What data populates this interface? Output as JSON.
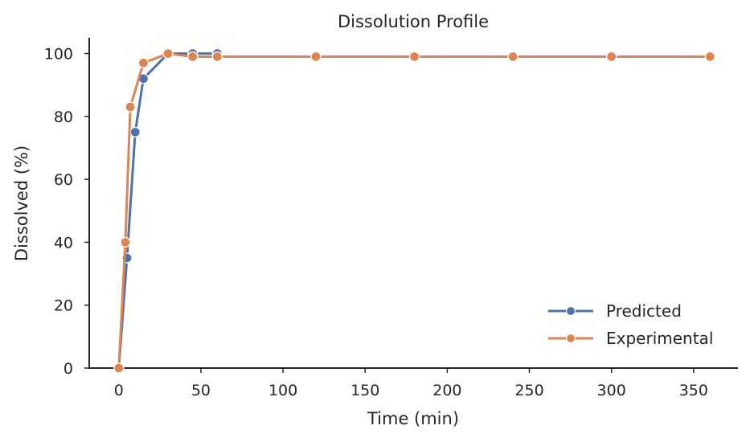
{
  "chart_data": {
    "type": "line",
    "title": "Dissolution Profile",
    "xlabel": "Time (min)",
    "ylabel": "Dissolved (%)",
    "xlim": [
      -18,
      377
    ],
    "ylim": [
      0,
      105
    ],
    "xticks": [
      0,
      50,
      100,
      150,
      200,
      250,
      300,
      350
    ],
    "yticks": [
      0,
      20,
      40,
      60,
      80,
      100
    ],
    "grid": false,
    "legend_position": "lower-right",
    "series": [
      {
        "name": "Predicted",
        "color": "#4c72b0",
        "marker": "circle",
        "x": [
          0,
          5,
          10,
          15,
          30,
          45,
          60
        ],
        "y": [
          0,
          35,
          75,
          92,
          100,
          100,
          100
        ]
      },
      {
        "name": "Experimental",
        "color": "#dd8452",
        "marker": "circle",
        "x": [
          0,
          4,
          7,
          15,
          30,
          45,
          60,
          120,
          180,
          240,
          300,
          360
        ],
        "y": [
          0,
          40,
          83,
          97,
          100,
          99,
          99,
          99,
          99,
          99,
          99,
          99
        ]
      }
    ]
  }
}
